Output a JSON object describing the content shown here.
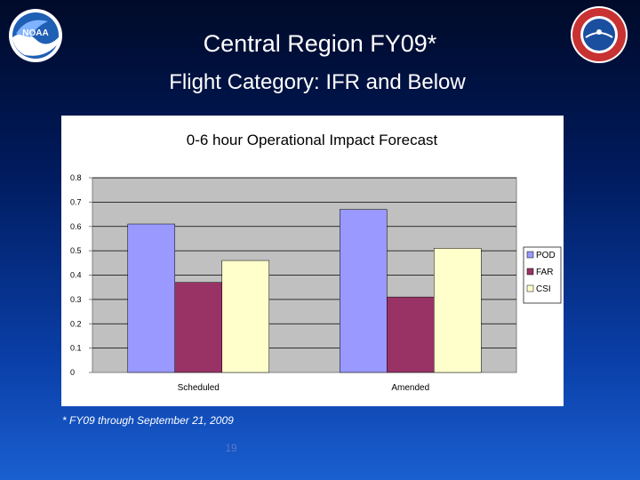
{
  "slide": {
    "title": "Central Region FY09*",
    "subtitle": "Flight Category: IFR and Below",
    "footnote": "* FY09 through September 21, 2009",
    "page_number": "19"
  },
  "logos": {
    "left": {
      "text": "NOAA",
      "icon": "noaa-logo-icon"
    },
    "right": {
      "icon": "nws-seal-icon"
    }
  },
  "colors": {
    "pod": "#9999ff",
    "far": "#993366",
    "csi": "#ffffcc",
    "plot_bg": "#c0c0c0"
  },
  "chart_data": {
    "type": "bar",
    "title": "0-6 hour Operational Impact Forecast",
    "categories": [
      "Scheduled",
      "Amended"
    ],
    "series": [
      {
        "name": "POD",
        "values": [
          0.61,
          0.67
        ]
      },
      {
        "name": "FAR",
        "values": [
          0.37,
          0.31
        ]
      },
      {
        "name": "CSI",
        "values": [
          0.46,
          0.51
        ]
      }
    ],
    "ylim": [
      0,
      0.8
    ],
    "yticks": [
      "0",
      "0.1",
      "0.2",
      "0.3",
      "0.4",
      "0.5",
      "0.6",
      "0.7",
      "0.8"
    ],
    "grid": true,
    "legend_position": "right",
    "xlabel": "",
    "ylabel": ""
  }
}
